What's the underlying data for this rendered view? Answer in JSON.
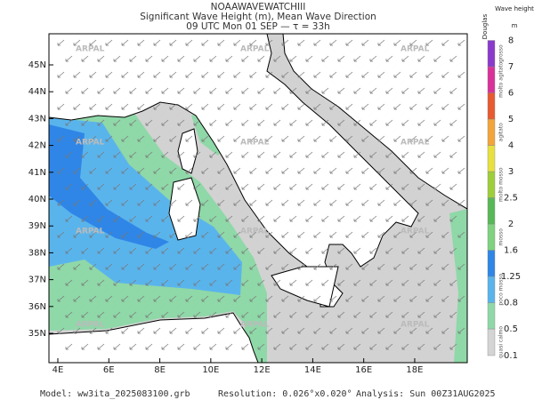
{
  "title": "NOAAWAVEWATCHIII",
  "subtitle": "Significant Wave Height (m), Mean Wave Direction",
  "time": "09 UTC Mon 01 SEP  —  τ = 33h",
  "watermark": "ARPAL",
  "lat_ticks": [
    {
      "value": 45,
      "label": "45N"
    },
    {
      "value": 44,
      "label": "44N"
    },
    {
      "value": 43,
      "label": "43N"
    },
    {
      "value": 42,
      "label": "42N"
    },
    {
      "value": 41,
      "label": "41N"
    },
    {
      "value": 40,
      "label": "40N"
    },
    {
      "value": 39,
      "label": "39N"
    },
    {
      "value": 38,
      "label": "38N"
    },
    {
      "value": 37,
      "label": "37N"
    },
    {
      "value": 36,
      "label": "36N"
    },
    {
      "value": 35,
      "label": "35N"
    }
  ],
  "lon_ticks": [
    {
      "value": 4,
      "label": "4E"
    },
    {
      "value": 6,
      "label": "6E"
    },
    {
      "value": 8,
      "label": "8E"
    },
    {
      "value": 10,
      "label": "10E"
    },
    {
      "value": 12,
      "label": "12E"
    },
    {
      "value": 14,
      "label": "14E"
    },
    {
      "value": 16,
      "label": "16E"
    },
    {
      "value": 18,
      "label": "18E"
    }
  ],
  "colorbar": {
    "header": "Wave height",
    "unit": "m",
    "scale_name": "Douglas",
    "levels": [
      0.1,
      0.5,
      0.8,
      1.25,
      1.6,
      2,
      2.5,
      3,
      4,
      5,
      6,
      7,
      8
    ],
    "colors": [
      "#d4d4d4",
      "#8fd8a8",
      "#5ab4ec",
      "#2f86e6",
      "#7fd27f",
      "#58b858",
      "#9ecf3a",
      "#e8e040",
      "#f2a53a",
      "#e85a30",
      "#d8329a",
      "#8a3acc"
    ],
    "states": [
      "quasi calmo",
      "poco mosso",
      "mosso",
      "molto mosso",
      "agitato",
      "molto agitato",
      "grosso"
    ]
  },
  "footer": {
    "model": "Model: ww3ita_2025083100.grb",
    "resolution": "Resolution: 0.026°x0.020°",
    "analysis": "Analysis: Sun 00Z31AUG2025"
  }
}
